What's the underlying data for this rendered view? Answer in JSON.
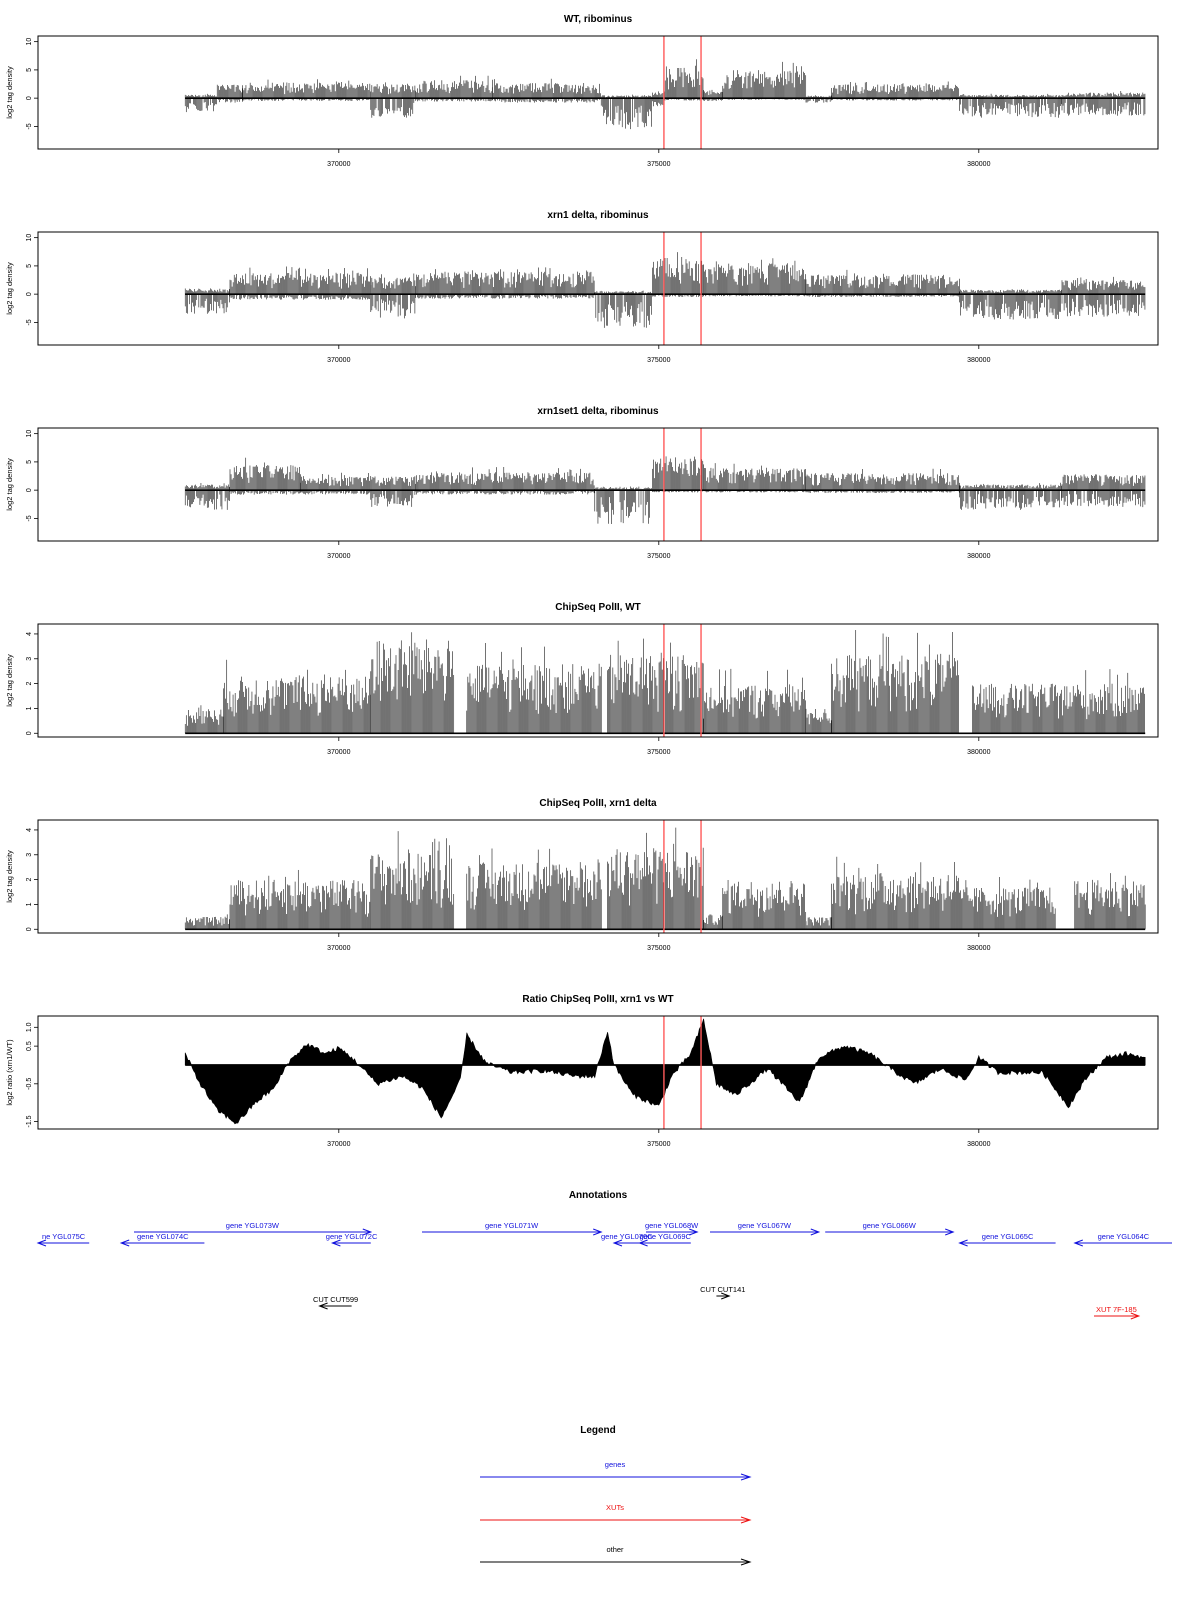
{
  "chart_data": {
    "panels": [
      {
        "type": "bar",
        "title": "WT, ribominus",
        "ylabel": "log2 tag density",
        "ylim": [
          -9,
          11
        ],
        "yticks": [
          -5,
          0,
          5,
          10
        ],
        "xlim": [
          365300,
          382800
        ],
        "xticks": [
          370000,
          375000,
          380000
        ],
        "baseline": 0,
        "marker_lines": [
          375080,
          375660
        ],
        "segments": [
          {
            "x": [
              367600,
              368100
            ],
            "pos": 0.6,
            "neg": 2.5
          },
          {
            "x": [
              368100,
              368500
            ],
            "pos": 2.5,
            "neg": 0.8
          },
          {
            "x": [
              368500,
              370500
            ],
            "pos": 2.8,
            "neg": 0.5
          },
          {
            "x": [
              370500,
              371200
            ],
            "pos": 2.5,
            "neg": 3.5
          },
          {
            "x": [
              371200,
              372400
            ],
            "pos": 3.2,
            "neg": 0.6
          },
          {
            "x": [
              372400,
              374100
            ],
            "pos": 2.7,
            "neg": 0.8
          },
          {
            "x": [
              374100,
              374900
            ],
            "pos": 0.5,
            "neg": 5.5
          },
          {
            "x": [
              374900,
              375100
            ],
            "pos": 1.0,
            "neg": 1.5
          },
          {
            "x": [
              375100,
              375700
            ],
            "pos": 5.8,
            "neg": 0.4
          },
          {
            "x": [
              375700,
              376000
            ],
            "pos": 1.5,
            "neg": 0.5
          },
          {
            "x": [
              376000,
              377300
            ],
            "pos": 5.0,
            "neg": 0.3
          },
          {
            "x": [
              377300,
              377700
            ],
            "pos": 0.4,
            "neg": 0.8
          },
          {
            "x": [
              377700,
              379700
            ],
            "pos": 2.5,
            "neg": 0.4
          },
          {
            "x": [
              379700,
              381300
            ],
            "pos": 0.6,
            "neg": 3.5
          },
          {
            "x": [
              381300,
              382600
            ],
            "pos": 1.0,
            "neg": 3.2
          }
        ]
      },
      {
        "type": "bar",
        "title": "xrn1 delta, ribominus",
        "ylabel": "log2 tag density",
        "ylim": [
          -9,
          11
        ],
        "yticks": [
          -5,
          0,
          5,
          10
        ],
        "xlim": [
          365300,
          382800
        ],
        "xticks": [
          370000,
          375000,
          380000
        ],
        "baseline": 0,
        "marker_lines": [
          375080,
          375660
        ],
        "segments": [
          {
            "x": [
              367600,
              368300
            ],
            "pos": 1.0,
            "neg": 3.5
          },
          {
            "x": [
              368300,
              370500
            ],
            "pos": 3.8,
            "neg": 1.0
          },
          {
            "x": [
              370500,
              371200
            ],
            "pos": 3.0,
            "neg": 4.5
          },
          {
            "x": [
              371200,
              374000
            ],
            "pos": 4.0,
            "neg": 0.8
          },
          {
            "x": [
              374000,
              374900
            ],
            "pos": 0.5,
            "neg": 6.0
          },
          {
            "x": [
              374900,
              375700
            ],
            "pos": 6.5,
            "neg": 0.5
          },
          {
            "x": [
              375700,
              377300
            ],
            "pos": 5.5,
            "neg": 0.4
          },
          {
            "x": [
              377300,
              379700
            ],
            "pos": 3.5,
            "neg": 0.5
          },
          {
            "x": [
              379700,
              381300
            ],
            "pos": 0.8,
            "neg": 4.5
          },
          {
            "x": [
              381300,
              382600
            ],
            "pos": 2.5,
            "neg": 4.0
          }
        ]
      },
      {
        "type": "bar",
        "title": "xrn1set1 delta, ribominus",
        "ylabel": "log2 tag density",
        "ylim": [
          -9,
          11
        ],
        "yticks": [
          -5,
          0,
          5,
          10
        ],
        "xlim": [
          365300,
          382800
        ],
        "xticks": [
          370000,
          375000,
          380000
        ],
        "baseline": 0,
        "marker_lines": [
          375080,
          375660
        ],
        "segments": [
          {
            "x": [
              367600,
              368300
            ],
            "pos": 1.0,
            "neg": 3.5
          },
          {
            "x": [
              368300,
              369400
            ],
            "pos": 4.5,
            "neg": 0.8
          },
          {
            "x": [
              369400,
              370500
            ],
            "pos": 2.5,
            "neg": 0.8
          },
          {
            "x": [
              370500,
              371200
            ],
            "pos": 2.5,
            "neg": 3.0
          },
          {
            "x": [
              371200,
              374000
            ],
            "pos": 3.2,
            "neg": 0.8
          },
          {
            "x": [
              374000,
              374900
            ],
            "pos": 0.5,
            "neg": 6.0
          },
          {
            "x": [
              374900,
              375700
            ],
            "pos": 6.0,
            "neg": 0.4
          },
          {
            "x": [
              375700,
              377300
            ],
            "pos": 4.0,
            "neg": 0.4
          },
          {
            "x": [
              377300,
              379700
            ],
            "pos": 3.0,
            "neg": 0.5
          },
          {
            "x": [
              379700,
              381300
            ],
            "pos": 1.0,
            "neg": 3.5
          },
          {
            "x": [
              381300,
              382600
            ],
            "pos": 2.8,
            "neg": 3.0
          }
        ]
      },
      {
        "type": "bar",
        "title": "ChipSeq PolII, WT",
        "ylabel": "log2 tag density",
        "ylim": [
          -0.15,
          4.4
        ],
        "yticks": [
          0,
          1,
          2,
          3,
          4
        ],
        "xlim": [
          365300,
          382800
        ],
        "xticks": [
          370000,
          375000,
          380000
        ],
        "baseline": 0,
        "marker_lines": [
          375080,
          375660
        ],
        "segments": [
          {
            "x": [
              367600,
              368200
            ],
            "pos": 1.0
          },
          {
            "x": [
              368200,
              370500
            ],
            "pos": 2.3
          },
          {
            "x": [
              370500,
              371800
            ],
            "pos": 3.8
          },
          {
            "x": [
              371800,
              372000
            ],
            "pos": 0.0
          },
          {
            "x": [
              372000,
              374100
            ],
            "pos": 2.8
          },
          {
            "x": [
              374100,
              374200
            ],
            "pos": 0.0
          },
          {
            "x": [
              374200,
              375700
            ],
            "pos": 3.2
          },
          {
            "x": [
              375700,
              377300
            ],
            "pos": 2.0
          },
          {
            "x": [
              377300,
              377700
            ],
            "pos": 1.0
          },
          {
            "x": [
              377700,
              379700
            ],
            "pos": 3.2
          },
          {
            "x": [
              379700,
              379900
            ],
            "pos": 0.0
          },
          {
            "x": [
              379900,
              382600
            ],
            "pos": 2.0
          }
        ]
      },
      {
        "type": "bar",
        "title": "ChipSeq PolII, xrn1 delta",
        "ylabel": "log2 tag density",
        "ylim": [
          -0.15,
          4.4
        ],
        "yticks": [
          0,
          1,
          2,
          3,
          4
        ],
        "xlim": [
          365300,
          382800
        ],
        "xticks": [
          370000,
          375000,
          380000
        ],
        "baseline": 0,
        "marker_lines": [
          375080,
          375660
        ],
        "segments": [
          {
            "x": [
              367600,
              368300
            ],
            "pos": 0.5
          },
          {
            "x": [
              368300,
              370500
            ],
            "pos": 2.0
          },
          {
            "x": [
              370500,
              371800
            ],
            "pos": 3.1
          },
          {
            "x": [
              371800,
              372000
            ],
            "pos": 0.0
          },
          {
            "x": [
              372000,
              374100
            ],
            "pos": 2.7
          },
          {
            "x": [
              374100,
              374200
            ],
            "pos": 0.0
          },
          {
            "x": [
              374200,
              375700
            ],
            "pos": 3.3
          },
          {
            "x": [
              375700,
              376000
            ],
            "pos": 0.6
          },
          {
            "x": [
              376000,
              377300
            ],
            "pos": 2.0
          },
          {
            "x": [
              377300,
              377700
            ],
            "pos": 0.5
          },
          {
            "x": [
              377700,
              379700
            ],
            "pos": 2.3
          },
          {
            "x": [
              379700,
              381200
            ],
            "pos": 1.7
          },
          {
            "x": [
              381200,
              381500
            ],
            "pos": 0.0
          },
          {
            "x": [
              381500,
              382600
            ],
            "pos": 2.0
          }
        ]
      },
      {
        "type": "area",
        "title": "Ratio ChipSeq PolII, xrn1 vs WT",
        "ylabel": "log2 ratio (xrn1/WT)",
        "ylim": [
          -1.7,
          1.3
        ],
        "yticks": [
          -1.5,
          -0.5,
          0.5,
          1.0
        ],
        "ytick_labels": [
          "-1.5",
          "-0.5",
          "0.5",
          "1.0"
        ],
        "xlim": [
          365300,
          382800
        ],
        "xticks": [
          370000,
          375000,
          380000
        ],
        "baseline": 0,
        "marker_lines": [
          375080,
          375660
        ],
        "profile": [
          [
            367600,
            0.3
          ],
          [
            367800,
            -0.4
          ],
          [
            368100,
            -1.2
          ],
          [
            368400,
            -1.55
          ],
          [
            368700,
            -1.0
          ],
          [
            369000,
            -0.6
          ],
          [
            369200,
            0.05
          ],
          [
            369500,
            0.55
          ],
          [
            369800,
            0.3
          ],
          [
            370000,
            0.45
          ],
          [
            370200,
            0.2
          ],
          [
            370600,
            -0.5
          ],
          [
            371000,
            -0.3
          ],
          [
            371300,
            -0.6
          ],
          [
            371600,
            -1.4
          ],
          [
            371900,
            -0.4
          ],
          [
            372000,
            0.8
          ],
          [
            372300,
            0.05
          ],
          [
            372700,
            -0.2
          ],
          [
            373200,
            -0.15
          ],
          [
            373700,
            -0.3
          ],
          [
            374000,
            -0.3
          ],
          [
            374200,
            0.9
          ],
          [
            374300,
            0.0
          ],
          [
            374600,
            -0.8
          ],
          [
            375000,
            -1.1
          ],
          [
            375200,
            -0.3
          ],
          [
            375500,
            0.3
          ],
          [
            375700,
            1.2
          ],
          [
            375900,
            -0.5
          ],
          [
            376200,
            -0.8
          ],
          [
            376700,
            -0.1
          ],
          [
            377200,
            -1.0
          ],
          [
            377500,
            0.2
          ],
          [
            377900,
            0.5
          ],
          [
            378300,
            0.3
          ],
          [
            378700,
            -0.2
          ],
          [
            379000,
            -0.5
          ],
          [
            379400,
            -0.1
          ],
          [
            379800,
            -0.4
          ],
          [
            380000,
            0.2
          ],
          [
            380300,
            -0.2
          ],
          [
            381000,
            -0.2
          ],
          [
            381400,
            -1.1
          ],
          [
            381700,
            -0.3
          ],
          [
            382000,
            0.2
          ],
          [
            382300,
            0.3
          ],
          [
            382600,
            0.2
          ]
        ]
      }
    ],
    "annotations": {
      "title": "Annotations",
      "features": [
        {
          "label": "ne YGL075C",
          "kind": "gene",
          "strand": "-",
          "start": 365300,
          "end": 366100,
          "row": 1
        },
        {
          "label": "gene YGL074C",
          "kind": "gene",
          "strand": "-",
          "start": 366600,
          "end": 367900,
          "row": 1
        },
        {
          "label": "gene YGL073W",
          "kind": "gene",
          "strand": "+",
          "start": 366800,
          "end": 370500,
          "row": 0
        },
        {
          "label": "gene YGL072C",
          "kind": "gene",
          "strand": "-",
          "start": 369900,
          "end": 370500,
          "row": 1
        },
        {
          "label": "gene YGL071W",
          "kind": "gene",
          "strand": "+",
          "start": 371300,
          "end": 374100,
          "row": 0
        },
        {
          "label": "gene YGL070C",
          "kind": "gene",
          "strand": "-",
          "start": 374300,
          "end": 374700,
          "row": 1
        },
        {
          "label": "gene YGL069C",
          "kind": "gene",
          "strand": "-",
          "start": 374700,
          "end": 375500,
          "row": 1
        },
        {
          "label": "gene YGL068W",
          "kind": "gene",
          "strand": "+",
          "start": 374800,
          "end": 375600,
          "row": 0
        },
        {
          "label": "gene YGL067W",
          "kind": "gene",
          "strand": "+",
          "start": 375800,
          "end": 377500,
          "row": 0
        },
        {
          "label": "gene YGL066W",
          "kind": "gene",
          "strand": "+",
          "start": 377600,
          "end": 379600,
          "row": 0
        },
        {
          "label": "gene YGL065C",
          "kind": "gene",
          "strand": "-",
          "start": 379700,
          "end": 381200,
          "row": 1
        },
        {
          "label": "gene YGL064C",
          "kind": "gene",
          "strand": "-",
          "start": 381500,
          "end": 383300,
          "row": 1
        },
        {
          "label": "CUT CUT599",
          "kind": "other",
          "strand": "-",
          "start": 369700,
          "end": 370200,
          "row": 3
        },
        {
          "label": "CUT CUT141",
          "kind": "other",
          "strand": "+",
          "start": 375900,
          "end": 376100,
          "row": 2
        },
        {
          "label": "XUT 7F-185",
          "kind": "xut",
          "strand": "+",
          "start": 381800,
          "end": 382500,
          "row": 4
        }
      ]
    },
    "legend": {
      "title": "Legend",
      "entries": [
        {
          "label": "genes",
          "kind": "gene"
        },
        {
          "label": "XUTs",
          "kind": "xut"
        },
        {
          "label": "other",
          "kind": "other"
        }
      ]
    }
  },
  "colors": {
    "gene": "#1111dd",
    "xut": "#ee1111",
    "other": "#000000",
    "marker": "#ff5a5a",
    "bars": "#000000"
  }
}
